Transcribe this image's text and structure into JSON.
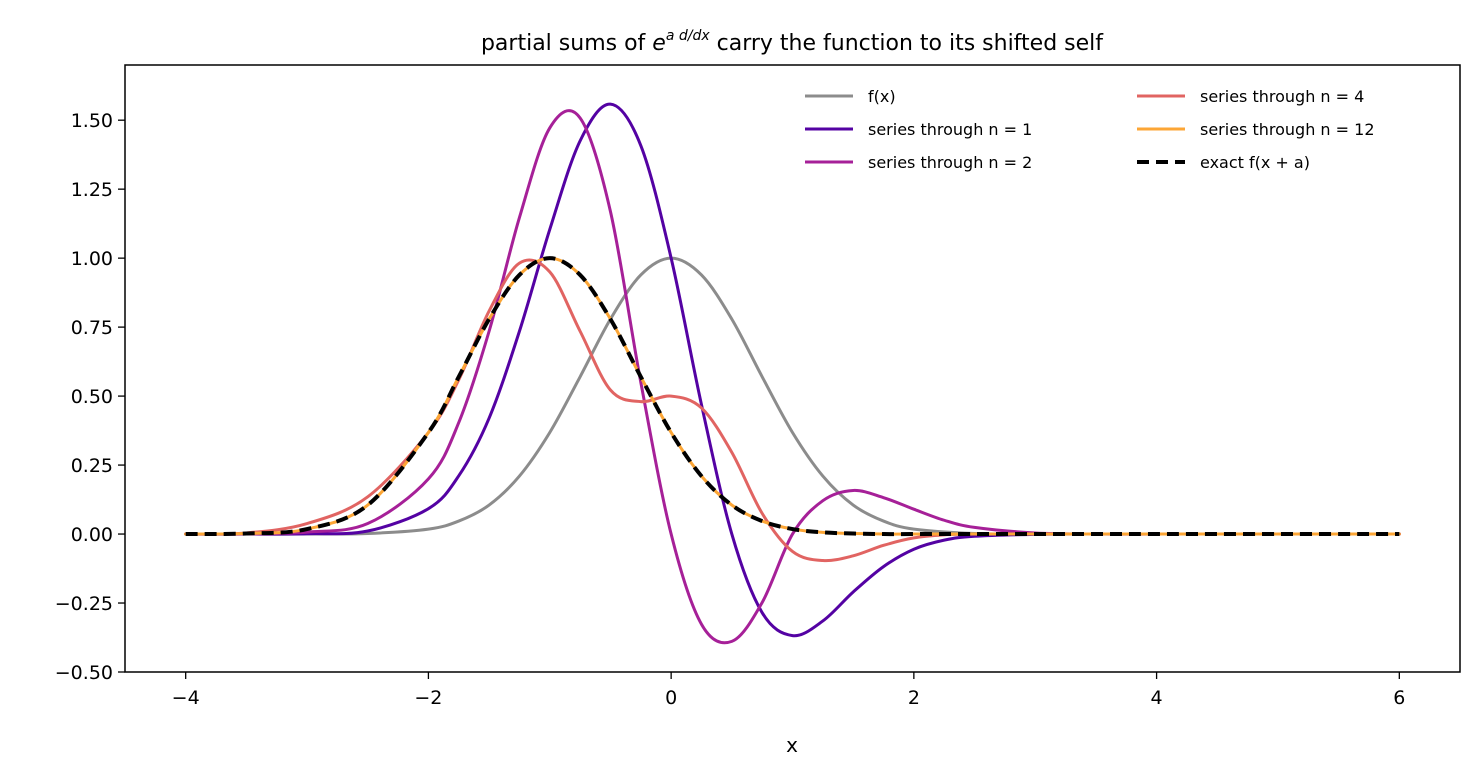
{
  "chart_data": {
    "type": "line",
    "title": {
      "prefix": "partial sums of ",
      "base": "e",
      "exponent": "a d/dx",
      "suffix": " carry the function to its shifted self"
    },
    "xlabel": "x",
    "ylabel": "",
    "xlim": [
      -4.5,
      6.5
    ],
    "ylim": [
      -0.5,
      1.7
    ],
    "x_ticks": [
      {
        "value": -4,
        "label": "−4"
      },
      {
        "value": -2,
        "label": "−2"
      },
      {
        "value": 0,
        "label": "0"
      },
      {
        "value": 2,
        "label": "2"
      },
      {
        "value": 4,
        "label": "4"
      },
      {
        "value": 6,
        "label": "6"
      }
    ],
    "y_ticks": [
      {
        "value": -0.5,
        "label": "−0.50"
      },
      {
        "value": -0.25,
        "label": "−0.25"
      },
      {
        "value": 0,
        "label": "0.00"
      },
      {
        "value": 0.25,
        "label": "0.25"
      },
      {
        "value": 0.5,
        "label": "0.50"
      },
      {
        "value": 0.75,
        "label": "0.75"
      },
      {
        "value": 1.0,
        "label": "1.00"
      },
      {
        "value": 1.25,
        "label": "1.25"
      },
      {
        "value": 1.5,
        "label": "1.50"
      }
    ],
    "grid": false,
    "legend": {
      "placement": "top-right",
      "columns": 2
    },
    "series": [
      {
        "name": "f(x)",
        "color": "#8c8c8c",
        "dash": "solid",
        "x": [
          -4.0,
          -3.5,
          -3.0,
          -2.5,
          -2.0,
          -1.75,
          -1.5,
          -1.25,
          -1.0,
          -0.75,
          -0.5,
          -0.25,
          0.0,
          0.25,
          0.5,
          0.75,
          1.0,
          1.25,
          1.5,
          1.75,
          2.0,
          2.5,
          3.0,
          3.5,
          4.0,
          5.0,
          6.0
        ],
        "y": [
          0.0,
          0.0,
          0.0,
          0.002,
          0.018,
          0.047,
          0.105,
          0.21,
          0.368,
          0.57,
          0.779,
          0.939,
          1.0,
          0.939,
          0.779,
          0.57,
          0.368,
          0.21,
          0.105,
          0.047,
          0.018,
          0.002,
          0.0,
          0.0,
          0.0,
          0.0,
          0.0
        ]
      },
      {
        "name": "series through n = 1",
        "color": "#5402a3",
        "dash": "solid",
        "x": [
          -4.0,
          -3.5,
          -3.0,
          -2.5,
          -2.0,
          -1.75,
          -1.5,
          -1.25,
          -1.0,
          -0.75,
          -0.5,
          -0.25,
          0.0,
          0.25,
          0.5,
          0.75,
          1.0,
          1.25,
          1.5,
          1.75,
          2.0,
          2.25,
          2.5,
          3.0,
          3.5,
          4.0,
          5.0,
          6.0
        ],
        "y": [
          0.0,
          0.0,
          0.001,
          0.011,
          0.092,
          0.211,
          0.42,
          0.735,
          1.104,
          1.425,
          1.558,
          1.408,
          1.0,
          0.469,
          0.0,
          -0.285,
          -0.368,
          -0.315,
          -0.21,
          -0.118,
          -0.055,
          -0.022,
          -0.008,
          -0.001,
          0.0,
          0.0,
          0.0,
          0.0
        ]
      },
      {
        "name": "series through n = 2",
        "color": "#a62098",
        "dash": "solid",
        "x": [
          -4.0,
          -3.5,
          -3.0,
          -2.5,
          -2.0,
          -1.75,
          -1.5,
          -1.25,
          -1.0,
          -0.75,
          -0.5,
          -0.25,
          0.0,
          0.25,
          0.5,
          0.75,
          1.0,
          1.25,
          1.5,
          1.75,
          2.0,
          2.25,
          2.5,
          3.0,
          3.5,
          4.0,
          5.0,
          6.0
        ],
        "y": [
          0.0,
          0.0,
          0.007,
          0.038,
          0.2,
          0.404,
          0.735,
          1.147,
          1.472,
          1.508,
          1.169,
          0.55,
          0.0,
          -0.327,
          -0.389,
          -0.248,
          -0.0,
          0.121,
          0.158,
          0.132,
          0.09,
          0.05,
          0.024,
          0.004,
          0.0,
          0.0,
          0.0,
          0.0
        ]
      },
      {
        "name": "series through n = 4",
        "color": "#e16462",
        "dash": "solid",
        "x": [
          -4.0,
          -3.5,
          -3.0,
          -2.5,
          -2.0,
          -1.75,
          -1.5,
          -1.25,
          -1.0,
          -0.75,
          -0.5,
          -0.25,
          0.0,
          0.25,
          0.5,
          0.75,
          1.0,
          1.25,
          1.5,
          1.75,
          2.0,
          2.25,
          2.5,
          3.0,
          3.5,
          4.0,
          5.0,
          6.0
        ],
        "y": [
          0.0,
          0.004,
          0.038,
          0.135,
          0.368,
          0.559,
          0.808,
          0.982,
          0.95,
          0.735,
          0.522,
          0.48,
          0.5,
          0.457,
          0.296,
          0.075,
          -0.063,
          -0.096,
          -0.079,
          -0.041,
          -0.014,
          -0.003,
          0.0,
          0.0,
          0.0,
          0.0,
          0.0,
          0.0
        ]
      },
      {
        "name": "series through n = 12",
        "color": "#fca636",
        "dash": "solid",
        "x": [
          -4.0,
          -3.5,
          -3.0,
          -2.5,
          -2.0,
          -1.75,
          -1.5,
          -1.25,
          -1.0,
          -0.75,
          -0.5,
          -0.25,
          0.0,
          0.25,
          0.5,
          0.75,
          1.0,
          1.25,
          1.5,
          1.75,
          2.0,
          2.5,
          3.0,
          3.5,
          4.0,
          5.0,
          6.0
        ],
        "y": [
          0.0,
          0.002,
          0.018,
          0.105,
          0.368,
          0.57,
          0.779,
          0.939,
          1.0,
          0.939,
          0.779,
          0.57,
          0.368,
          0.21,
          0.105,
          0.047,
          0.018,
          0.006,
          0.002,
          0.0,
          0.0,
          0.0,
          0.0,
          0.0,
          0.0,
          0.0,
          0.0
        ]
      },
      {
        "name": "exact f(x + a)",
        "color": "#000000",
        "dash": "dashed",
        "x": [
          -4.0,
          -3.5,
          -3.0,
          -2.5,
          -2.0,
          -1.75,
          -1.5,
          -1.25,
          -1.0,
          -0.75,
          -0.5,
          -0.25,
          0.0,
          0.25,
          0.5,
          0.75,
          1.0,
          1.25,
          1.5,
          1.75,
          2.0,
          2.5,
          3.0,
          3.5,
          4.0,
          5.0,
          6.0
        ],
        "y": [
          0.0,
          0.002,
          0.018,
          0.105,
          0.368,
          0.57,
          0.779,
          0.939,
          1.0,
          0.939,
          0.779,
          0.57,
          0.368,
          0.21,
          0.105,
          0.047,
          0.018,
          0.006,
          0.002,
          0.0,
          0.0,
          0.0,
          0.0,
          0.0,
          0.0,
          0.0,
          0.0
        ]
      }
    ]
  }
}
